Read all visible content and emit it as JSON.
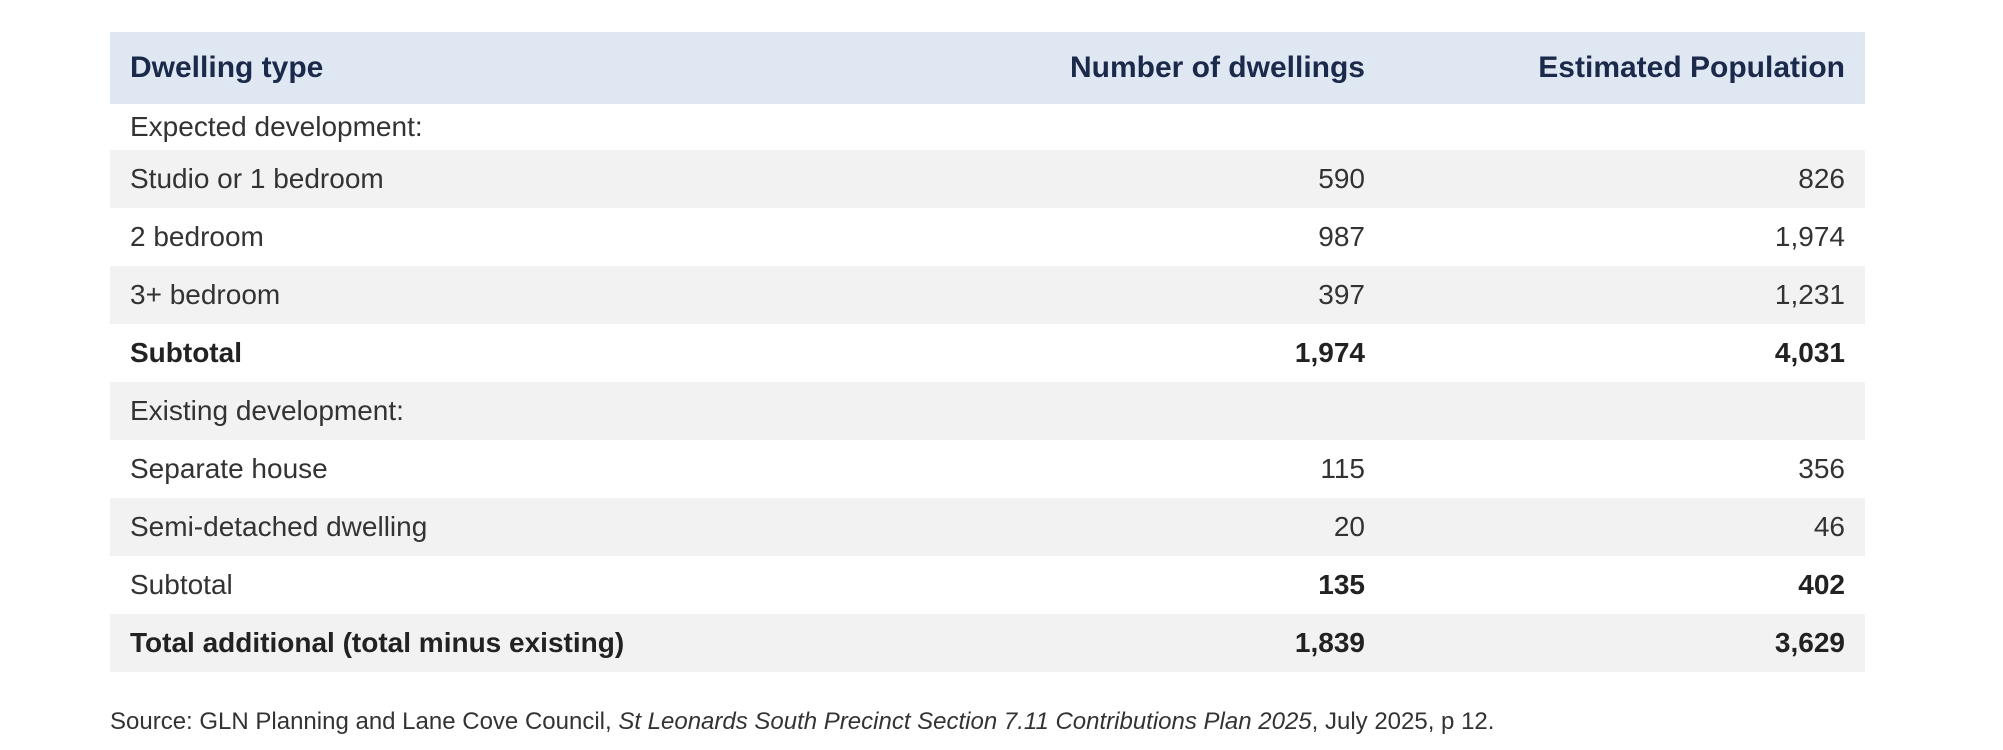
{
  "table": {
    "headers": {
      "dwelling_type": "Dwelling type",
      "number_of_dwellings": "Number of dwellings",
      "estimated_population": "Estimated Population"
    },
    "rows": [
      {
        "type": "section",
        "label": "Expected development:",
        "dwellings": "",
        "population": ""
      },
      {
        "type": "data",
        "label": "Studio or 1 bedroom",
        "dwellings": "590",
        "population": "826"
      },
      {
        "type": "data",
        "label": "2 bedroom",
        "dwellings": "987",
        "population": "1,974"
      },
      {
        "type": "data",
        "label": "3+ bedroom",
        "dwellings": "397",
        "population": "1,231"
      },
      {
        "type": "subtotal",
        "label": "Subtotal",
        "dwellings": "1,974",
        "population": "4,031"
      },
      {
        "type": "section",
        "label": "Existing development:",
        "dwellings": "",
        "population": ""
      },
      {
        "type": "data",
        "label": "Separate house",
        "dwellings": "115",
        "population": "356"
      },
      {
        "type": "data",
        "label": "Semi-detached dwelling",
        "dwellings": "20",
        "population": "46"
      },
      {
        "type": "subtotal",
        "label": "Subtotal",
        "dwellings": "135",
        "population": "402"
      },
      {
        "type": "total",
        "label": "Total additional (total minus existing)",
        "dwellings": "1,839",
        "population": "3,629"
      }
    ]
  },
  "source": {
    "prefix": "Source: GLN Planning and Lane Cove Council, ",
    "title": "St Leonards South Precinct Section 7.11 Contributions Plan 2025",
    "suffix": ", July 2025, p 12."
  }
}
